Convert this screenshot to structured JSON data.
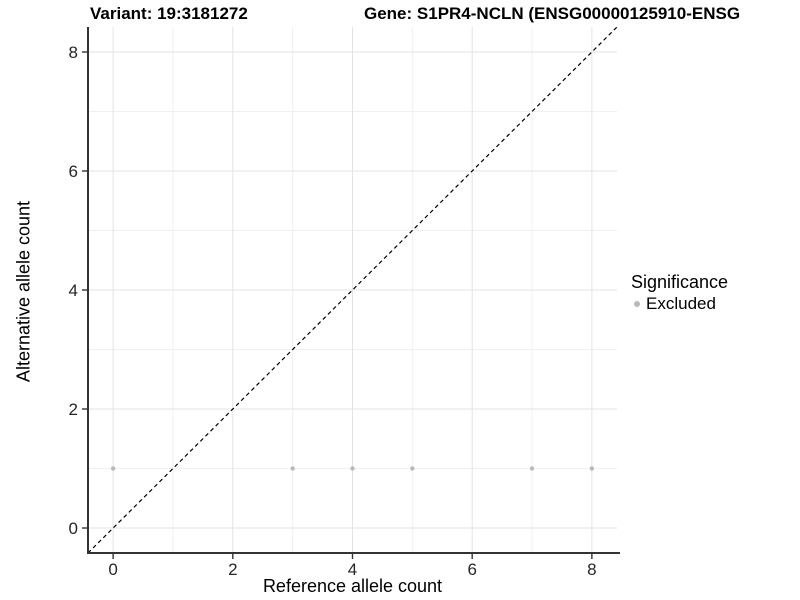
{
  "titles": {
    "variant": "Variant: 19:3181272",
    "gene": "Gene: S1PR4-NCLN (ENSG00000125910-ENSG"
  },
  "legend": {
    "title": "Significance",
    "items": [
      {
        "label": "Excluded",
        "color": "#b9b9b9"
      }
    ]
  },
  "chart_data": {
    "type": "scatter",
    "title_left": "Variant: 19:3181272",
    "title_right": "Gene: S1PR4-NCLN (ENSG00000125910-ENSG",
    "xlabel": "Reference allele count",
    "ylabel": "Alternative allele count",
    "xlim": [
      -0.42,
      8.42
    ],
    "ylim": [
      -0.42,
      8.42
    ],
    "x_ticks": [
      0,
      2,
      4,
      6,
      8
    ],
    "y_ticks": [
      0,
      2,
      4,
      6,
      8
    ],
    "x_minor_gridlines": [
      1,
      3,
      5,
      7
    ],
    "y_minor_gridlines": [
      1,
      3,
      5,
      7
    ],
    "grid": true,
    "legend_position": "right",
    "legend_title": "Significance",
    "series": [
      {
        "name": "Excluded",
        "color": "#b9b9b9",
        "marker": "circle",
        "points": [
          [
            0,
            1
          ],
          [
            3,
            1
          ],
          [
            4,
            1
          ],
          [
            5,
            1
          ],
          [
            7,
            1
          ],
          [
            8,
            1
          ]
        ]
      }
    ],
    "reference_line": {
      "equation": "y = x",
      "style": "dashed",
      "color": "#000000"
    }
  },
  "style": {
    "major_grid_color": "#e3e3e3",
    "minor_grid_color": "#f0f0f0",
    "axis_line_color": "#333333",
    "tick_color": "#333333",
    "tick_label_color": "#262626",
    "point_color": "#b9b9b9",
    "ref_line_color": "#000000"
  }
}
